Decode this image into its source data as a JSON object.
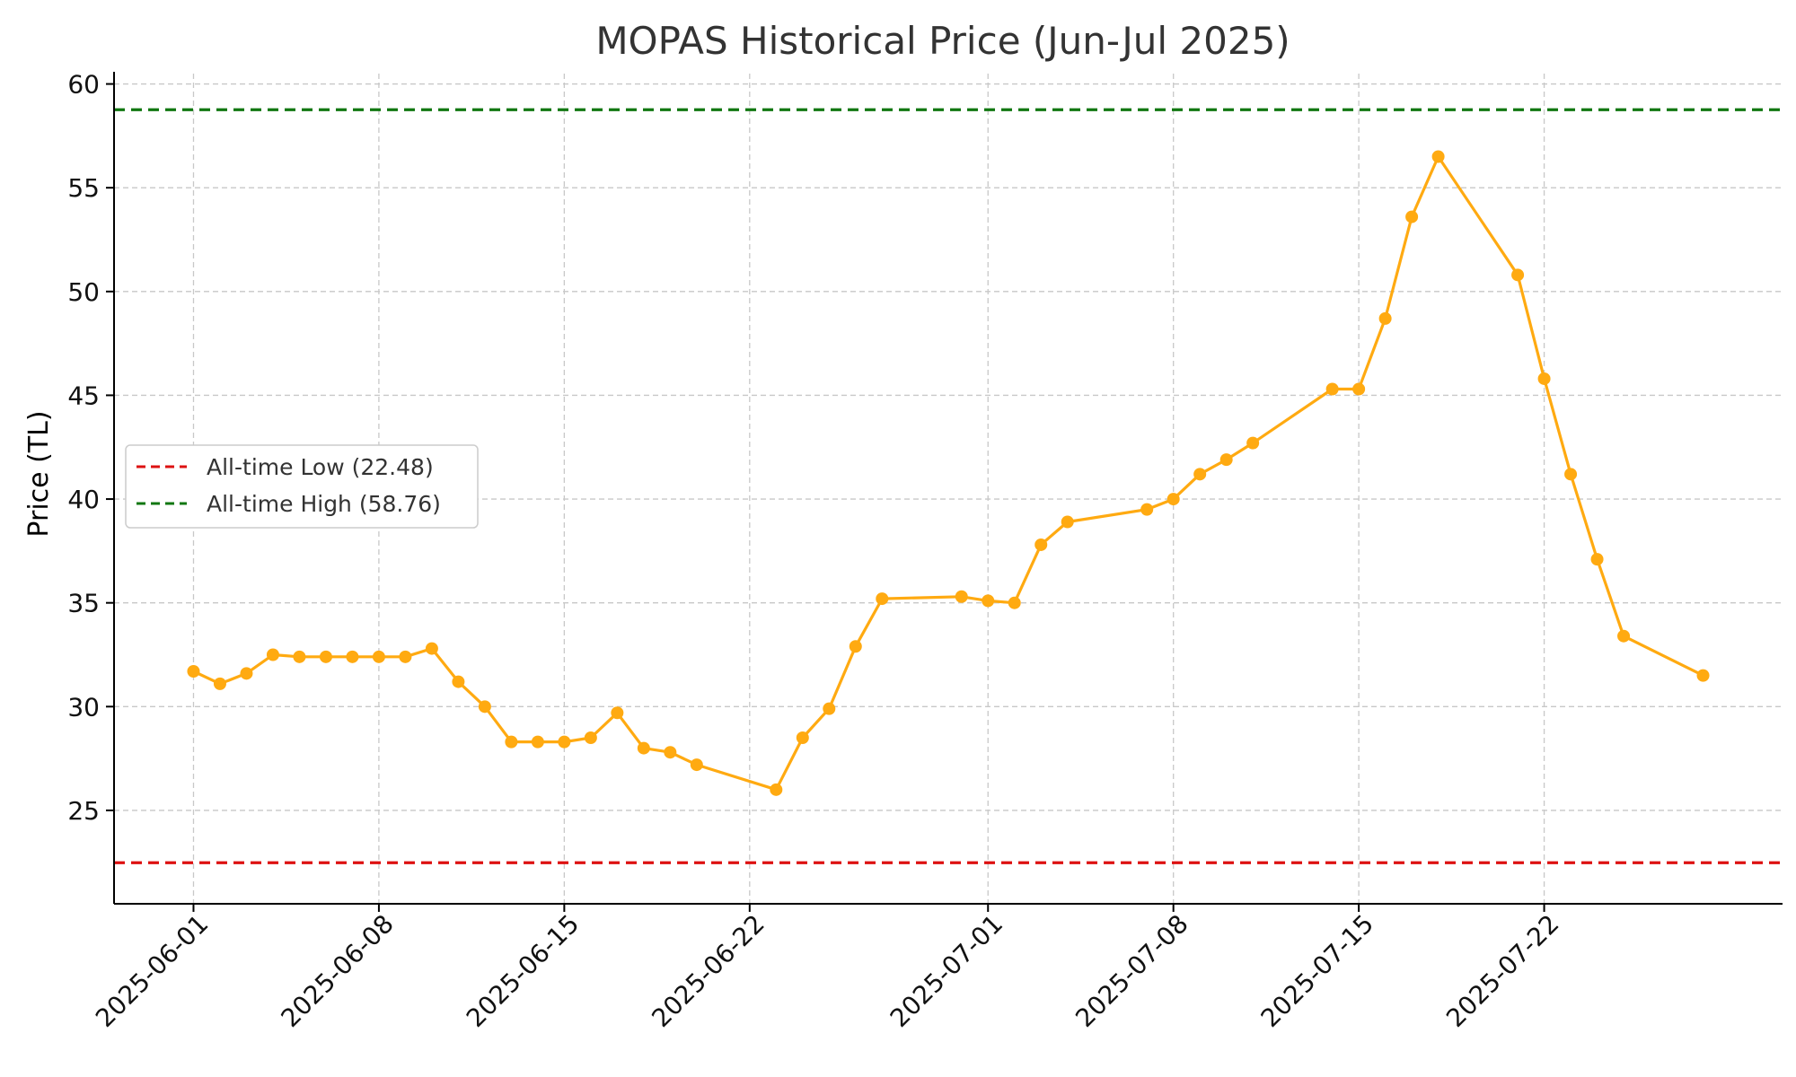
{
  "chart_data": {
    "type": "line",
    "title": "MOPAS Historical Price (Jun-Jul 2025)",
    "xlabel": "",
    "ylabel": "Price (TL)",
    "ylim": [
      20.5,
      60.5
    ],
    "xlim": [
      "2025-05-29",
      "2025-07-31"
    ],
    "grid": true,
    "legend_position": "center-left",
    "x_ticks": [
      "2025-06-01",
      "2025-06-08",
      "2025-06-15",
      "2025-06-22",
      "2025-07-01",
      "2025-07-08",
      "2025-07-15",
      "2025-07-22"
    ],
    "y_ticks": [
      25,
      30,
      35,
      40,
      45,
      50,
      55,
      60
    ],
    "series": [
      {
        "color": "#FFAA11",
        "x": [
          "2025-06-01",
          "2025-06-02",
          "2025-06-03",
          "2025-06-04",
          "2025-06-05",
          "2025-06-06",
          "2025-06-07",
          "2025-06-08",
          "2025-06-09",
          "2025-06-10",
          "2025-06-11",
          "2025-06-12",
          "2025-06-13",
          "2025-06-14",
          "2025-06-15",
          "2025-06-16",
          "2025-06-17",
          "2025-06-18",
          "2025-06-19",
          "2025-06-20",
          "2025-06-23",
          "2025-06-24",
          "2025-06-25",
          "2025-06-26",
          "2025-06-27",
          "2025-06-30",
          "2025-07-01",
          "2025-07-02",
          "2025-07-03",
          "2025-07-04",
          "2025-07-07",
          "2025-07-08",
          "2025-07-09",
          "2025-07-10",
          "2025-07-11",
          "2025-07-14",
          "2025-07-15",
          "2025-07-16",
          "2025-07-17",
          "2025-07-18",
          "2025-07-21",
          "2025-07-22",
          "2025-07-23",
          "2025-07-24",
          "2025-07-25",
          "2025-07-28"
        ],
        "y": [
          31.7,
          31.1,
          31.6,
          32.5,
          32.4,
          32.4,
          32.4,
          32.4,
          32.4,
          32.8,
          31.2,
          30.0,
          28.3,
          28.3,
          28.3,
          28.5,
          29.7,
          28.0,
          27.8,
          27.2,
          26.0,
          28.5,
          29.9,
          32.9,
          35.2,
          35.3,
          35.1,
          35.0,
          37.8,
          38.9,
          39.5,
          40.0,
          41.2,
          41.9,
          42.7,
          45.3,
          45.3,
          48.7,
          53.6,
          56.5,
          50.8,
          45.8,
          41.2,
          37.1,
          33.4,
          31.5
        ]
      }
    ],
    "reference_lines": [
      {
        "label": "All-time Low (22.48)",
        "value": 22.48,
        "color": "#DD1111"
      },
      {
        "label": "All-time High (58.76)",
        "value": 58.76,
        "color": "#117711"
      }
    ]
  }
}
